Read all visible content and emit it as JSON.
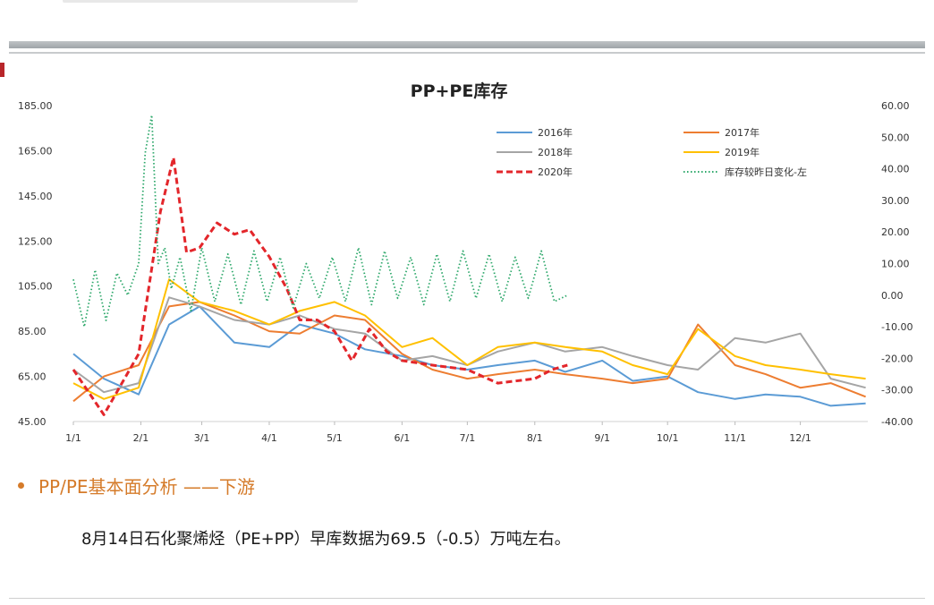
{
  "slide": {
    "section_heading": "PP/PE基本面分析 ——下游",
    "body_text": "8月14日石化聚烯烃（PE+PP）早库数据为69.5（-0.5）万吨左右。"
  },
  "chart_data": {
    "type": "line",
    "title": "PP+PE库存",
    "x_ticks": [
      "1/1",
      "2/1",
      "3/1",
      "4/1",
      "5/1",
      "6/1",
      "7/1",
      "8/1",
      "9/1",
      "10/1",
      "11/1",
      "12/1"
    ],
    "y_left": {
      "ticks": [
        "45.00",
        "65.00",
        "85.00",
        "105.00",
        "125.00",
        "145.00",
        "165.00",
        "185.00"
      ],
      "range": [
        45,
        185
      ]
    },
    "y_right": {
      "ticks": [
        "-40.00",
        "-30.00",
        "-20.00",
        "-10.00",
        "0.00",
        "10.00",
        "20.00",
        "30.00",
        "40.00",
        "50.00",
        "60.00"
      ],
      "range": [
        -40,
        60
      ]
    },
    "legend_position": "top-right",
    "series": [
      {
        "name": "2016年",
        "color": "#5b9bd5",
        "style": "solid",
        "axis": "left",
        "x": [
          1,
          15,
          31,
          45,
          59,
          75,
          91,
          105,
          121,
          135,
          152,
          166,
          182,
          196,
          213,
          227,
          244,
          258,
          274,
          288,
          305,
          319,
          335,
          349,
          365
        ],
        "values": [
          75,
          64,
          57,
          88,
          96,
          80,
          78,
          88,
          84,
          77,
          74,
          70,
          68,
          70,
          72,
          67,
          72,
          63,
          65,
          58,
          55,
          57,
          56,
          52,
          53
        ]
      },
      {
        "name": "2017年",
        "color": "#ed7d31",
        "style": "solid",
        "axis": "left",
        "x": [
          1,
          15,
          31,
          45,
          59,
          75,
          91,
          105,
          121,
          135,
          152,
          166,
          182,
          196,
          213,
          227,
          244,
          258,
          274,
          288,
          305,
          319,
          335,
          349,
          365
        ],
        "values": [
          54,
          65,
          70,
          96,
          98,
          92,
          85,
          84,
          92,
          90,
          75,
          68,
          64,
          66,
          68,
          66,
          64,
          62,
          64,
          88,
          70,
          66,
          60,
          62,
          56
        ]
      },
      {
        "name": "2018年",
        "color": "#a5a5a5",
        "style": "solid",
        "axis": "left",
        "x": [
          1,
          15,
          31,
          45,
          59,
          75,
          91,
          105,
          121,
          135,
          152,
          166,
          182,
          196,
          213,
          227,
          244,
          258,
          274,
          288,
          305,
          319,
          335,
          349,
          365
        ],
        "values": [
          68,
          58,
          62,
          100,
          96,
          90,
          88,
          92,
          86,
          84,
          72,
          74,
          70,
          76,
          80,
          76,
          78,
          74,
          70,
          68,
          82,
          80,
          84,
          64,
          60
        ]
      },
      {
        "name": "2019年",
        "color": "#ffc000",
        "style": "solid",
        "axis": "left",
        "x": [
          1,
          15,
          31,
          45,
          59,
          75,
          91,
          105,
          121,
          135,
          152,
          166,
          182,
          196,
          213,
          227,
          244,
          258,
          274,
          288,
          305,
          319,
          335,
          349,
          365
        ],
        "values": [
          62,
          55,
          60,
          108,
          98,
          94,
          88,
          94,
          98,
          92,
          78,
          82,
          70,
          78,
          80,
          78,
          76,
          70,
          66,
          86,
          74,
          70,
          68,
          66,
          64
        ]
      },
      {
        "name": "2020年",
        "color": "#e3262b",
        "style": "dash",
        "axis": "left",
        "x": [
          1,
          15,
          31,
          41,
          47,
          53,
          59,
          67,
          75,
          82,
          91,
          99,
          105,
          113,
          121,
          129,
          137,
          145,
          152,
          166,
          182,
          196,
          213,
          221,
          228
        ],
        "values": [
          68,
          48,
          75,
          138,
          162,
          120,
          122,
          133,
          128,
          130,
          118,
          104,
          90,
          90,
          85,
          72,
          86,
          76,
          72,
          70,
          68,
          62,
          64,
          68,
          70
        ]
      },
      {
        "name": "库存较昨日变化-左",
        "color": "#2ea86b",
        "style": "dot",
        "axis": "right",
        "x": [
          1,
          6,
          11,
          16,
          21,
          26,
          31,
          34,
          37,
          40,
          43,
          46,
          50,
          55,
          60,
          66,
          72,
          78,
          84,
          90,
          96,
          102,
          108,
          114,
          120,
          126,
          132,
          138,
          144,
          150,
          156,
          162,
          168,
          174,
          180,
          186,
          192,
          198,
          204,
          210,
          216,
          222,
          228
        ],
        "values": [
          5,
          -10,
          8,
          -8,
          7,
          0,
          10,
          45,
          57,
          10,
          15,
          2,
          12,
          -5,
          15,
          -2,
          13,
          -3,
          14,
          -2,
          12,
          -4,
          10,
          -1,
          12,
          -2,
          15,
          -3,
          14,
          -1,
          12,
          -3,
          13,
          -2,
          14,
          -1,
          13,
          -2,
          12,
          -1,
          14,
          -2,
          0
        ]
      }
    ]
  }
}
